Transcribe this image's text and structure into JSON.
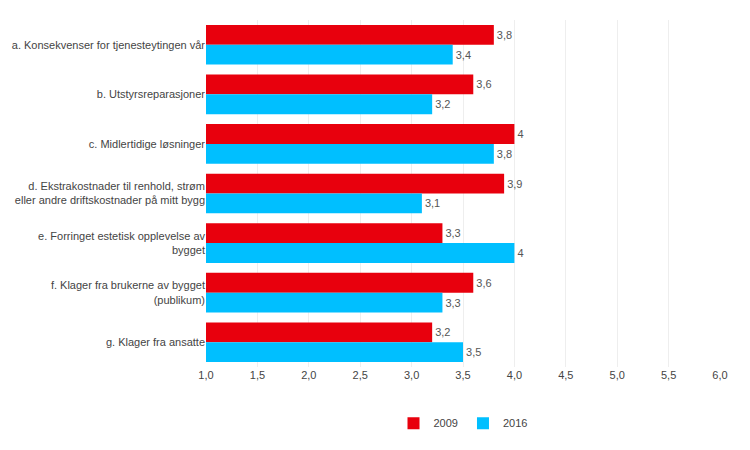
{
  "chart_data": {
    "type": "bar",
    "orientation": "horizontal",
    "categories": [
      "a. Konsekvenser for tjenesteytingen vår",
      "b. Utstyrsreparasjoner",
      "c. Midlertidige løsninger",
      "d. Ekstrakostnader til renhold, strøm\neller andre driftskostnader på mitt bygg",
      "e. Forringet estetisk opplevelse av\nbygget",
      "f. Klager fra brukerne av bygget\n(publikum)",
      "g. Klager fra ansatte"
    ],
    "series": [
      {
        "name": "2009",
        "color": "#e8000d",
        "values": [
          3.8,
          3.6,
          4.0,
          3.9,
          3.3,
          3.6,
          3.2
        ],
        "value_labels": [
          "3,8",
          "3,6",
          "4",
          "3,9",
          "3,3",
          "3,6",
          "3,2"
        ]
      },
      {
        "name": "2016",
        "color": "#00bfff",
        "values": [
          3.4,
          3.2,
          3.8,
          3.1,
          4.0,
          3.3,
          3.5
        ],
        "value_labels": [
          "3,4",
          "3,2",
          "3,8",
          "3,1",
          "4",
          "3,3",
          "3,5"
        ]
      }
    ],
    "xlim": [
      1.0,
      6.0
    ],
    "xticks": [
      {
        "value": 1.0,
        "label": "1,0"
      },
      {
        "value": 1.5,
        "label": "1,5"
      },
      {
        "value": 2.0,
        "label": "2,0"
      },
      {
        "value": 2.5,
        "label": "2,5"
      },
      {
        "value": 3.0,
        "label": "3,0"
      },
      {
        "value": 3.5,
        "label": "3,5"
      },
      {
        "value": 4.0,
        "label": "4,0"
      },
      {
        "value": 4.5,
        "label": "4,5"
      },
      {
        "value": 5.0,
        "label": "5,0"
      },
      {
        "value": 5.5,
        "label": "5,5"
      },
      {
        "value": 6.0,
        "label": "6,0"
      }
    ],
    "grid": true,
    "legend": "bottom",
    "data_labels": true
  }
}
